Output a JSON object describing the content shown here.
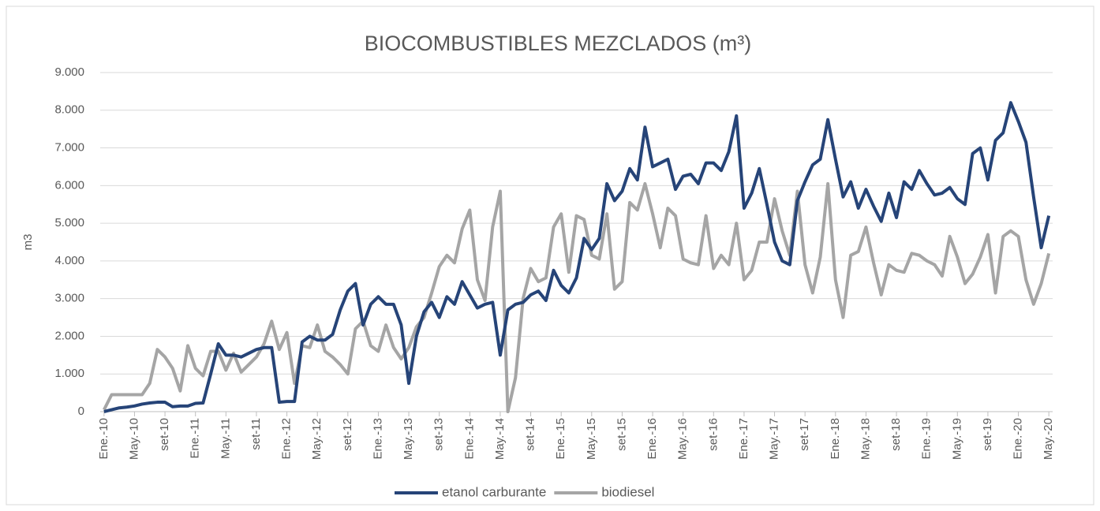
{
  "chart_data": {
    "type": "line",
    "title": "BIOCOMBUSTIBLES MEZCLADOS (m³)",
    "y_label": "m3",
    "categories": [
      "Ene.-10",
      null,
      null,
      null,
      "May.-10",
      null,
      null,
      null,
      "set-10",
      null,
      null,
      null,
      "Ene.-11",
      null,
      null,
      null,
      "May.-11",
      null,
      null,
      null,
      "set-11",
      null,
      null,
      null,
      "Ene.-12",
      null,
      null,
      null,
      "May.-12",
      null,
      null,
      null,
      "set-12",
      null,
      null,
      null,
      "Ene.-13",
      null,
      null,
      null,
      "May.-13",
      null,
      null,
      null,
      "set-13",
      null,
      null,
      null,
      "Ene.-14",
      null,
      null,
      null,
      "May.-14",
      null,
      null,
      null,
      "set-14",
      null,
      null,
      null,
      "Ene.-15",
      null,
      null,
      null,
      "May.-15",
      null,
      null,
      null,
      "set-15",
      null,
      null,
      null,
      "Ene.-16",
      null,
      null,
      null,
      "May.-16",
      null,
      null,
      null,
      "set-16",
      null,
      null,
      null,
      "Ene.-17",
      null,
      null,
      null,
      "May.-17",
      null,
      null,
      null,
      "set-17",
      null,
      null,
      null,
      "Ene.-18",
      null,
      null,
      null,
      "May.-18",
      null,
      null,
      null,
      "set-18",
      null,
      null,
      null,
      "Ene.-19",
      null,
      null,
      null,
      "May.-19",
      null,
      null,
      null,
      "set-19",
      null,
      null,
      null,
      "Ene.-20",
      null,
      null,
      null,
      "May.-20"
    ],
    "series": [
      {
        "name": "etanol carburante",
        "color": "#264478",
        "values": [
          0,
          50,
          100,
          120,
          150,
          200,
          230,
          250,
          250,
          130,
          150,
          150,
          220,
          230,
          1000,
          1800,
          1500,
          1500,
          1450,
          1550,
          1650,
          1700,
          1700,
          250,
          270,
          270,
          1850,
          2000,
          1900,
          1900,
          2050,
          2700,
          3200,
          3400,
          2300,
          2850,
          3050,
          2850,
          2850,
          2300,
          750,
          2000,
          2650,
          2900,
          2500,
          3050,
          2850,
          3450,
          3100,
          2750,
          2850,
          2900,
          1500,
          2700,
          2850,
          2900,
          3100,
          3200,
          2950,
          3750,
          3350,
          3150,
          3550,
          4600,
          4300,
          4600,
          6050,
          5600,
          5850,
          6450,
          6150,
          7550,
          6500,
          6600,
          6700,
          5900,
          6250,
          6300,
          6050,
          6600,
          6600,
          6400,
          6900,
          7850,
          5400,
          5800,
          6450,
          5500,
          4500,
          4000,
          3900,
          5600,
          6100,
          6550,
          6700,
          7750,
          6700,
          5700,
          6100,
          5400,
          5900,
          5450,
          5050,
          5800,
          5150,
          6100,
          5900,
          6400,
          6050,
          5750,
          5800,
          5950,
          5650,
          5500,
          6850,
          7000,
          6150,
          7200,
          7400,
          8200,
          7700,
          7150,
          5700,
          4350,
          5200
        ]
      },
      {
        "name": "biodiesel",
        "color": "#a5a5a5",
        "values": [
          50,
          450,
          450,
          450,
          450,
          450,
          750,
          1650,
          1450,
          1150,
          550,
          1750,
          1150,
          950,
          1600,
          1600,
          1100,
          1550,
          1050,
          1250,
          1450,
          1800,
          2400,
          1650,
          2100,
          750,
          1750,
          1700,
          2300,
          1600,
          1450,
          1250,
          1000,
          2200,
          2400,
          1750,
          1600,
          2300,
          1700,
          1400,
          1700,
          2250,
          2500,
          3150,
          3850,
          4150,
          3950,
          4850,
          5350,
          3500,
          2950,
          4900,
          5850,
          0,
          900,
          3000,
          3800,
          3450,
          3550,
          4900,
          5250,
          3700,
          5200,
          5100,
          4150,
          4050,
          5250,
          3250,
          3450,
          5550,
          5350,
          6050,
          5250,
          4350,
          5400,
          5200,
          4050,
          3950,
          3900,
          5200,
          3800,
          4150,
          3900,
          5000,
          3500,
          3750,
          4500,
          4500,
          5650,
          4800,
          4150,
          5850,
          3900,
          3150,
          4100,
          6050,
          3500,
          2500,
          4150,
          4250,
          4900,
          3950,
          3100,
          3900,
          3750,
          3700,
          4200,
          4150,
          4000,
          3900,
          3600,
          4650,
          4100,
          3400,
          3650,
          4100,
          4700,
          3150,
          4650,
          4800,
          4650,
          3500,
          2850,
          3400,
          4200
        ]
      }
    ],
    "ylim": [
      0,
      9000
    ],
    "yticks": [
      0,
      {
        "value": 1000,
        "label": "1.000"
      },
      {
        "value": 2000,
        "label": "2.000"
      },
      {
        "value": 3000,
        "label": "3.000"
      },
      {
        "value": 4000,
        "label": "4.000"
      },
      {
        "value": 5000,
        "label": "5.000"
      },
      {
        "value": 6000,
        "label": "6.000"
      },
      {
        "value": 7000,
        "label": "7.000"
      },
      {
        "value": 8000,
        "label": "8.000"
      },
      {
        "value": 9000,
        "label": "9.000"
      }
    ],
    "grid": true,
    "legend": "bottom"
  }
}
